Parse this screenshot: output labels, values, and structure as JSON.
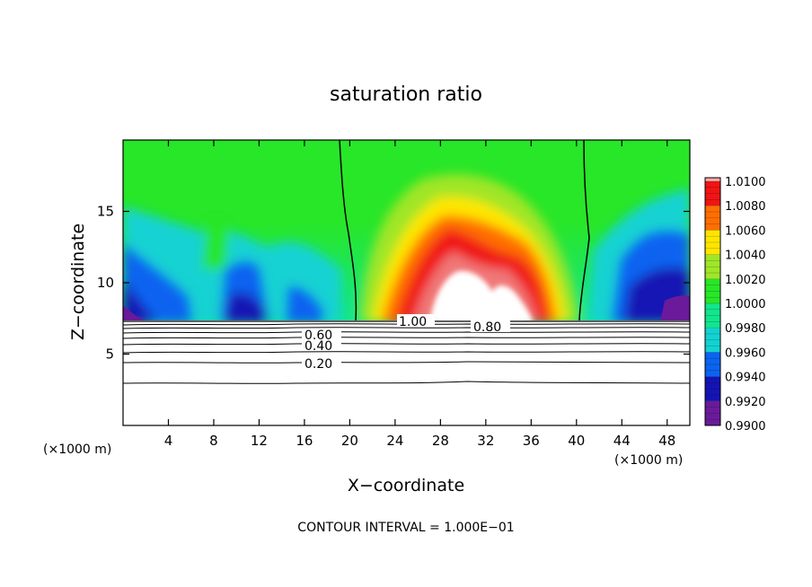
{
  "chart_data": {
    "type": "heatmap",
    "title": "saturation ratio",
    "xlabel": "X−coordinate",
    "ylabel": "Z−coordinate",
    "x_unit_left": "(×1000 m)",
    "x_unit_right": "(×1000 m)",
    "footer": "CONTOUR INTERVAL = 1.000E−01",
    "xlim": [
      0,
      50
    ],
    "ylim": [
      0,
      20
    ],
    "x_ticks": [
      {
        "value": 4,
        "label": "4"
      },
      {
        "value": 8,
        "label": "8"
      },
      {
        "value": 12,
        "label": "12"
      },
      {
        "value": 16,
        "label": "16"
      },
      {
        "value": 20,
        "label": "20"
      },
      {
        "value": 24,
        "label": "24"
      },
      {
        "value": 28,
        "label": "28"
      },
      {
        "value": 32,
        "label": "32"
      },
      {
        "value": 36,
        "label": "36"
      },
      {
        "value": 40,
        "label": "40"
      },
      {
        "value": 44,
        "label": "44"
      },
      {
        "value": 48,
        "label": "48"
      }
    ],
    "y_ticks": [
      {
        "value": 5,
        "label": "5"
      },
      {
        "value": 10,
        "label": "10"
      },
      {
        "value": 15,
        "label": "15"
      }
    ],
    "colorbar": {
      "levels": [
        {
          "value": 0.99,
          "label": "0.9900",
          "color": "#6a1a9a"
        },
        {
          "value": 0.992,
          "label": "0.9920",
          "color": "#1414b4"
        },
        {
          "value": 0.994,
          "label": "0.9940",
          "color": "#0a64f0"
        },
        {
          "value": 0.996,
          "label": "0.9960",
          "color": "#14d2d2"
        },
        {
          "value": 0.998,
          "label": "0.9980",
          "color": "#12e68c"
        },
        {
          "value": 1.0,
          "label": "1.0000",
          "color": "#28e628"
        },
        {
          "value": 1.002,
          "label": "1.0020",
          "color": "#a0e628"
        },
        {
          "value": 1.004,
          "label": "1.0040",
          "color": "#ffe600"
        },
        {
          "value": 1.006,
          "label": "1.0060",
          "color": "#ff6e00"
        },
        {
          "value": 1.008,
          "label": "1.0080",
          "color": "#f01414"
        },
        {
          "value": 1.01,
          "label": "1.0100",
          "color": "#f07878"
        }
      ],
      "top_color": "#f8a8a8"
    },
    "contours": [
      {
        "level": 1.0,
        "label": "1.00"
      },
      {
        "level": 0.8,
        "label": "0.80"
      },
      {
        "level": 0.6,
        "label": "0.60"
      },
      {
        "level": 0.4,
        "label": "0.40"
      },
      {
        "level": 0.2,
        "label": "0.20"
      }
    ],
    "grid": false
  }
}
